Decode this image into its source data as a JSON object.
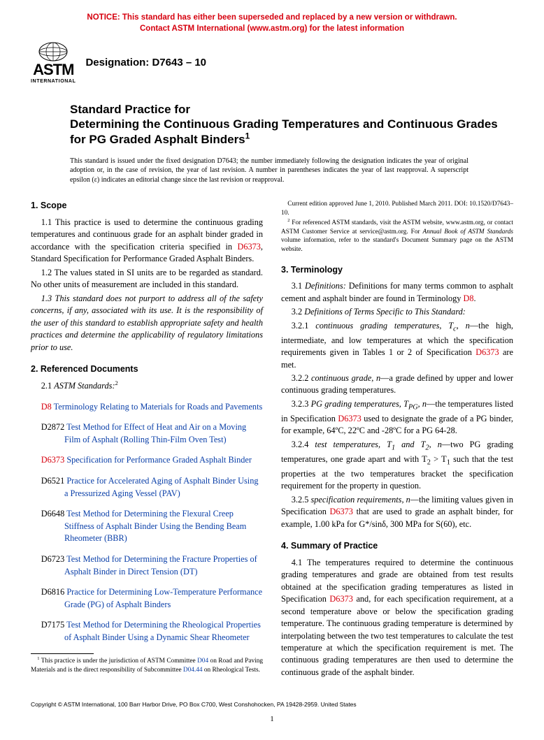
{
  "notice": {
    "line1": "NOTICE: This standard has either been superseded and replaced by a new version or withdrawn.",
    "line2": "Contact ASTM International (www.astm.org) for the latest information"
  },
  "logo": {
    "big": "ASTM",
    "small": "INTERNATIONAL"
  },
  "designation": "Designation: D7643 – 10",
  "title": {
    "lead": "Standard Practice for",
    "main": "Determining the Continuous Grading Temperatures and Continuous Grades for PG Graded Asphalt Binders",
    "sup": "1"
  },
  "issuance": "This standard is issued under the fixed designation D7643; the number immediately following the designation indicates the year of original adoption or, in the case of revision, the year of last revision. A number in parentheses indicates the year of last reapproval. A superscript epsilon (ε) indicates an editorial change since the last revision or reapproval.",
  "s1": {
    "head": "1. Scope",
    "p1a": "1.1 This practice is used to determine the continuous grading temperatures and continuous grade for an asphalt binder graded in accordance with the specification criteria specified in ",
    "p1link": "D6373",
    "p1b": ", Standard Specification for Performance Graded Asphalt Binders.",
    "p2": "1.2 The values stated in SI units are to be regarded as standard. No other units of measurement are included in this standard.",
    "p3": "1.3 This standard does not purport to address all of the safety concerns, if any, associated with its use. It is the responsibility of the user of this standard to establish appropriate safety and health practices and determine the applicability of regulatory limitations prior to use."
  },
  "s2": {
    "head": "2. Referenced Documents",
    "lead": "2.1 ",
    "leadital": "ASTM Standards:",
    "sup": "2",
    "items": [
      {
        "code": "D8",
        "codecolor": "red",
        "text": "Terminology Relating to Materials for Roads and Pavements"
      },
      {
        "code": "D2872",
        "codecolor": "black",
        "text": "Test Method for Effect of Heat and Air on a Moving Film of Asphalt (Rolling Thin-Film Oven Test)"
      },
      {
        "code": "D6373",
        "codecolor": "red",
        "text": "Specification for Performance Graded Asphalt Binder"
      },
      {
        "code": "D6521",
        "codecolor": "black",
        "text": "Practice for Accelerated Aging of Asphalt Binder Using a Pressurized Aging Vessel (PAV)"
      },
      {
        "code": "D6648",
        "codecolor": "black",
        "text": "Test Method for Determining the Flexural Creep Stiffness of Asphalt Binder Using the Bending Beam Rheometer (BBR)"
      },
      {
        "code": "D6723",
        "codecolor": "black",
        "text": "Test Method for Determining the Fracture Properties of Asphalt Binder in Direct Tension (DT)"
      },
      {
        "code": "D6816",
        "codecolor": "black",
        "text": "Practice for Determining Low-Temperature Performance Grade (PG) of Asphalt Binders"
      },
      {
        "code": "D7175",
        "codecolor": "black",
        "text": "Test Method for Determining the Rheological Properties of Asphalt Binder Using a Dynamic Shear Rheometer"
      }
    ]
  },
  "s3": {
    "head": "3. Terminology",
    "p1a": "3.1 ",
    "p1ital": "Definitions:",
    "p1b": " Definitions for many terms common to asphalt cement and asphalt binder are found in Terminology ",
    "p1link": "D8",
    "p1c": ".",
    "p2a": "3.2 ",
    "p2ital": "Definitions of Terms Specific to This Standard:",
    "p3a": "3.2.1 ",
    "p3ital": "continuous grading temperatures, T",
    "p3sub": "c",
    "p3ital2": ", n",
    "p3b": "—the high, intermediate, and low temperatures at which the specification requirements given in Tables 1 or 2 of Specification ",
    "p3link": "D6373",
    "p3c": " are met.",
    "p4a": "3.2.2 ",
    "p4ital": "continuous grade, n",
    "p4b": "—a grade defined by upper and lower continuous grading temperatures.",
    "p5a": "3.2.3 ",
    "p5ital": "PG grading temperatures, T",
    "p5sub": "PG",
    "p5ital2": ", n",
    "p5b": "—the temperatures listed in Specification ",
    "p5link": "D6373",
    "p5c": " used to designate the grade of a PG binder, for example, 64ºC, 22ºC and -28ºC for a PG 64-28.",
    "p6a": "3.2.4 ",
    "p6ital": "test temperatures, T",
    "p6sub1": "1",
    "p6ital2": " and T",
    "p6sub2": "2",
    "p6ital3": ", n",
    "p6b": "—two PG grading temperatures, one grade apart and with T",
    "p6c": " > T",
    "p6d": " such that the test properties at the two temperatures bracket the specification requirement for the property in question.",
    "p7a": "3.2.5 ",
    "p7ital": "specification requirements, n",
    "p7b": "—the limiting values given in Specification ",
    "p7link": "D6373",
    "p7c": " that are used to grade an asphalt binder, for example, 1.00 kPa for G*/sinδ, 300 MPa for S(60), etc."
  },
  "s4": {
    "head": "4. Summary of Practice",
    "p1a": "4.1 The temperatures required to determine the continuous grading temperatures and grade are obtained from test results obtained at the specification grading temperatures as listed in Specification ",
    "p1link": "D6373",
    "p1b": " and, for each specification requirement, at a second temperature above or below the specification grading temperature. The continuous grading temperature is determined by interpolating between the two test temperatures to calculate the test temperature at which the specification requirement is met. The continuous grading temperatures are then used to determine the continuous grade of the asphalt binder."
  },
  "footnotes": {
    "f1a": " This practice is under the jurisdiction of ASTM Committee ",
    "f1link1": "D04",
    "f1b": " on Road and Paving Materials and is the direct responsibility of Subcommittee ",
    "f1link2": "D04.44",
    "f1c": " on Rheological Tests.",
    "f1d": "Current edition approved June 1, 2010. Published March 2011. DOI: 10.1520/D7643–10.",
    "f2a": " For referenced ASTM standards, visit the ASTM website, www.astm.org, or contact ASTM Customer Service at service@astm.org. For ",
    "f2ital": "Annual Book of ASTM Standards",
    "f2b": " volume information, refer to the standard's Document Summary page on the ASTM website."
  },
  "copyright": "Copyright © ASTM International, 100 Barr Harbor Drive, PO Box C700, West Conshohocken, PA 19428-2959. United States",
  "pagenum": "1"
}
